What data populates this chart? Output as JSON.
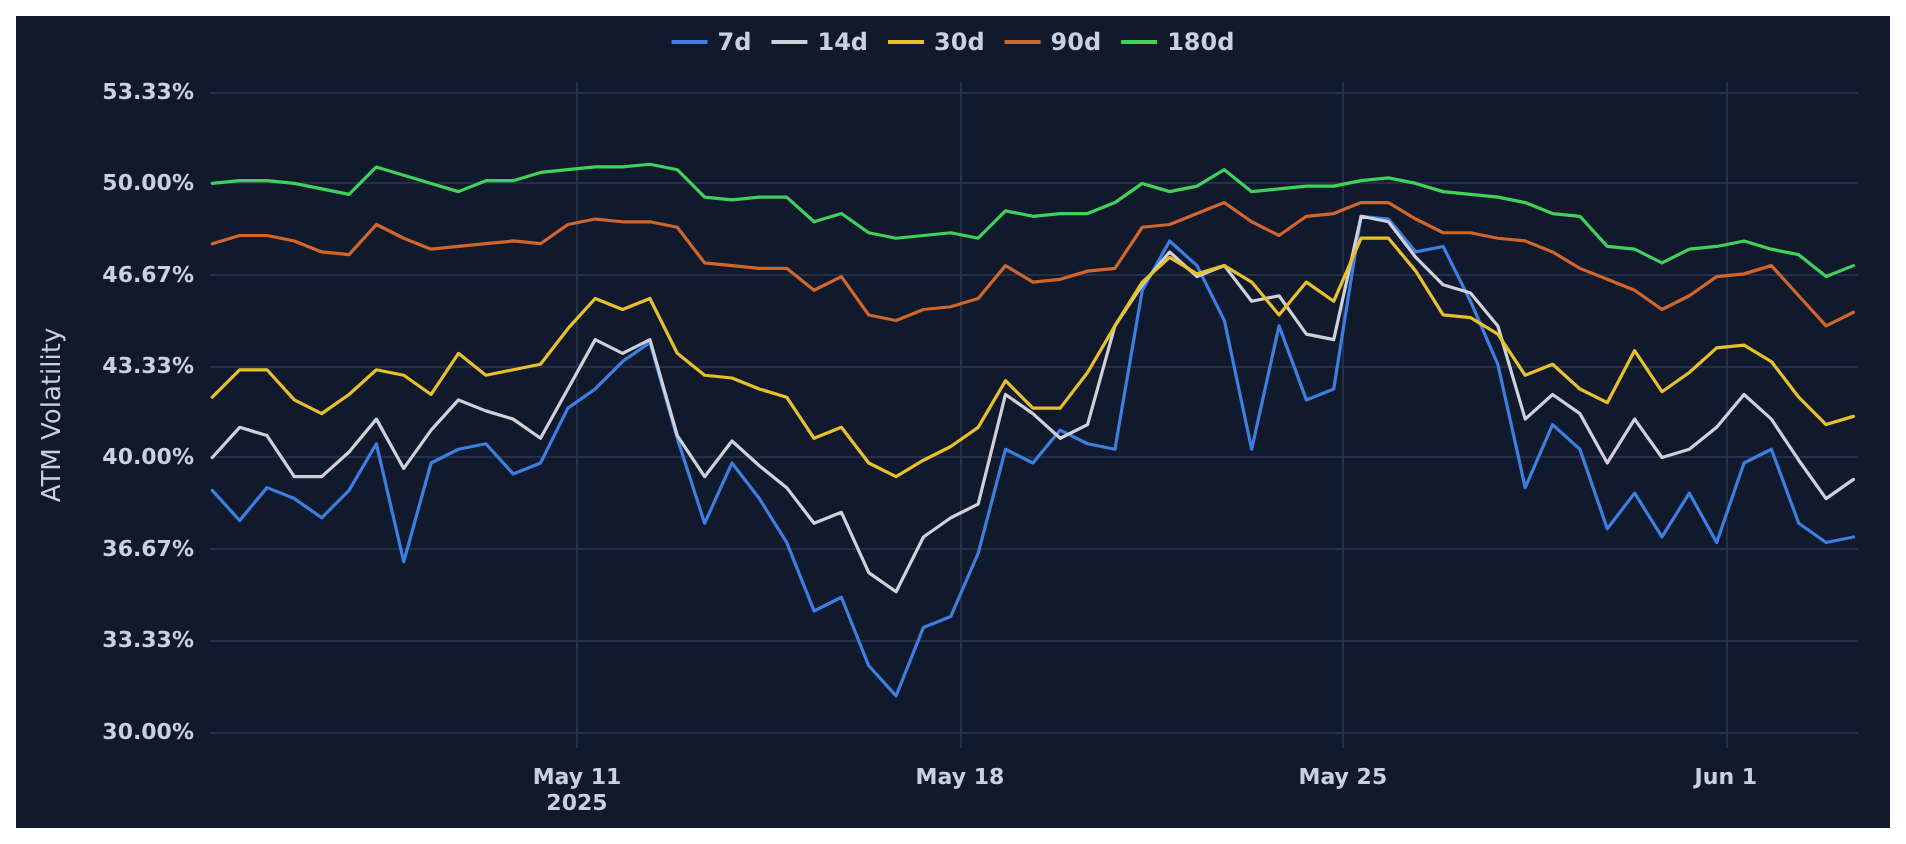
{
  "chart_data": {
    "type": "line",
    "ylabel": "ATM Volatility",
    "legend": "top",
    "grid": true,
    "marker": "none",
    "line_style": "solid",
    "ylim": [
      29.4,
      53.7
    ],
    "yticks": [
      {
        "value": 30,
        "label": "30.00%"
      },
      {
        "value": 33.33,
        "label": "33.33%"
      },
      {
        "value": 36.67,
        "label": "36.67%"
      },
      {
        "value": 40,
        "label": "40.00%"
      },
      {
        "value": 43.33,
        "label": "43.33%"
      },
      {
        "value": 46.67,
        "label": "46.67%"
      },
      {
        "value": 50,
        "label": "50.00%"
      },
      {
        "value": 53.33,
        "label": "53.33%"
      }
    ],
    "xlim": [
      "2025-05-04T07:00",
      "2025-06-03T10:00"
    ],
    "xticks": [
      {
        "value": "2025-05-11",
        "label": "May 11\n2025"
      },
      {
        "value": "2025-05-18",
        "label": "May 18"
      },
      {
        "value": "2025-05-25",
        "label": "May 25"
      },
      {
        "value": "2025-06-01",
        "label": "Jun 1"
      }
    ],
    "x": [
      "2025-05-04T08:00",
      "2025-05-04T20:00",
      "2025-05-05T08:00",
      "2025-05-05T20:00",
      "2025-05-06T08:00",
      "2025-05-06T20:00",
      "2025-05-07T08:00",
      "2025-05-07T20:00",
      "2025-05-08T08:00",
      "2025-05-08T20:00",
      "2025-05-09T08:00",
      "2025-05-09T20:00",
      "2025-05-10T08:00",
      "2025-05-10T20:00",
      "2025-05-11T08:00",
      "2025-05-11T20:00",
      "2025-05-12T08:00",
      "2025-05-12T20:00",
      "2025-05-13T08:00",
      "2025-05-13T20:00",
      "2025-05-14T08:00",
      "2025-05-14T20:00",
      "2025-05-15T08:00",
      "2025-05-15T20:00",
      "2025-05-16T08:00",
      "2025-05-16T20:00",
      "2025-05-17T08:00",
      "2025-05-17T20:00",
      "2025-05-18T08:00",
      "2025-05-18T20:00",
      "2025-05-19T08:00",
      "2025-05-19T20:00",
      "2025-05-20T08:00",
      "2025-05-20T20:00",
      "2025-05-21T08:00",
      "2025-05-21T20:00",
      "2025-05-22T08:00",
      "2025-05-22T20:00",
      "2025-05-23T08:00",
      "2025-05-23T20:00",
      "2025-05-24T08:00",
      "2025-05-24T20:00",
      "2025-05-25T08:00",
      "2025-05-25T20:00",
      "2025-05-26T08:00",
      "2025-05-26T20:00",
      "2025-05-27T08:00",
      "2025-05-27T20:00",
      "2025-05-28T08:00",
      "2025-05-28T20:00",
      "2025-05-29T08:00",
      "2025-05-29T20:00",
      "2025-05-30T08:00",
      "2025-05-30T20:00",
      "2025-05-31T08:00",
      "2025-05-31T20:00",
      "2025-06-01T08:00",
      "2025-06-01T20:00",
      "2025-06-02T08:00",
      "2025-06-02T20:00",
      "2025-06-03T08:00"
    ],
    "series": [
      {
        "name": "7d",
        "color": "#3d7fe0",
        "values": [
          38.8,
          37.7,
          38.9,
          38.5,
          37.8,
          38.8,
          40.5,
          36.2,
          39.8,
          40.3,
          40.5,
          39.4,
          39.8,
          41.8,
          42.5,
          43.5,
          44.2,
          40.7,
          37.6,
          39.8,
          38.5,
          36.9,
          34.4,
          34.9,
          32.4,
          31.3,
          33.8,
          34.2,
          36.5,
          40.3,
          39.8,
          41.0,
          40.5,
          40.3,
          46.1,
          47.9,
          47.0,
          45.0,
          40.3,
          44.8,
          42.1,
          42.5,
          48.8,
          48.7,
          47.5,
          47.7,
          45.7,
          43.4,
          38.9,
          41.2,
          40.3,
          37.4,
          38.7,
          37.1,
          38.7,
          36.9,
          39.8,
          40.3,
          37.6,
          36.9,
          37.1
        ]
      },
      {
        "name": "14d",
        "color": "#d0d0d8",
        "values": [
          40.0,
          41.1,
          40.8,
          39.3,
          39.3,
          40.2,
          41.4,
          39.6,
          41.0,
          42.1,
          41.7,
          41.4,
          40.7,
          42.5,
          44.3,
          43.8,
          44.3,
          40.8,
          39.3,
          40.6,
          39.7,
          38.9,
          37.6,
          38.0,
          35.8,
          35.1,
          37.1,
          37.8,
          38.3,
          42.3,
          41.6,
          40.7,
          41.2,
          44.8,
          46.3,
          47.5,
          46.6,
          47.0,
          45.7,
          45.9,
          44.5,
          44.3,
          48.8,
          48.6,
          47.3,
          46.3,
          46.0,
          44.8,
          41.4,
          42.3,
          41.6,
          39.8,
          41.4,
          40.0,
          40.3,
          41.1,
          42.3,
          41.4,
          39.9,
          38.5,
          39.2
        ]
      },
      {
        "name": "30d",
        "color": "#e8c12a",
        "values": [
          42.2,
          43.2,
          43.2,
          42.1,
          41.6,
          42.3,
          43.2,
          43.0,
          42.3,
          43.8,
          43.0,
          43.2,
          43.4,
          44.7,
          45.8,
          45.4,
          45.8,
          43.8,
          43.0,
          42.9,
          42.5,
          42.2,
          40.7,
          41.1,
          39.8,
          39.3,
          39.9,
          40.4,
          41.1,
          42.8,
          41.8,
          41.8,
          43.1,
          44.8,
          46.4,
          47.3,
          46.7,
          47.0,
          46.4,
          45.2,
          46.4,
          45.7,
          48.0,
          48.0,
          46.8,
          45.2,
          45.1,
          44.5,
          43.0,
          43.4,
          42.5,
          42.0,
          43.9,
          42.4,
          43.1,
          44.0,
          44.1,
          43.5,
          42.2,
          41.2,
          41.5
        ]
      },
      {
        "name": "90d",
        "color": "#d2662a",
        "values": [
          47.8,
          48.1,
          48.1,
          47.9,
          47.5,
          47.4,
          48.5,
          48.0,
          47.6,
          47.7,
          47.8,
          47.9,
          47.8,
          48.5,
          48.7,
          48.6,
          48.6,
          48.4,
          47.1,
          47.0,
          46.9,
          46.9,
          46.1,
          46.6,
          45.2,
          45.0,
          45.4,
          45.5,
          45.8,
          47.0,
          46.4,
          46.5,
          46.8,
          46.9,
          48.4,
          48.5,
          48.9,
          49.3,
          48.6,
          48.1,
          48.8,
          48.9,
          49.3,
          49.3,
          48.7,
          48.2,
          48.2,
          48.0,
          47.9,
          47.5,
          46.9,
          46.5,
          46.1,
          45.4,
          45.9,
          46.6,
          46.7,
          47.0,
          45.9,
          44.8,
          45.3
        ]
      },
      {
        "name": "180d",
        "color": "#3fd15a",
        "values": [
          50.0,
          50.1,
          50.1,
          50.0,
          49.8,
          49.6,
          50.6,
          50.3,
          50.0,
          49.7,
          50.1,
          50.1,
          50.4,
          50.5,
          50.6,
          50.6,
          50.7,
          50.5,
          49.5,
          49.4,
          49.5,
          49.5,
          48.6,
          48.9,
          48.2,
          48.0,
          48.1,
          48.2,
          48.0,
          49.0,
          48.8,
          48.9,
          48.9,
          49.3,
          50.0,
          49.7,
          49.9,
          50.5,
          49.7,
          49.8,
          49.9,
          49.9,
          50.1,
          50.2,
          50.0,
          49.7,
          49.6,
          49.5,
          49.3,
          48.9,
          48.8,
          47.7,
          47.6,
          47.1,
          47.6,
          47.7,
          47.9,
          47.6,
          47.4,
          46.6,
          47.0
        ]
      }
    ]
  }
}
